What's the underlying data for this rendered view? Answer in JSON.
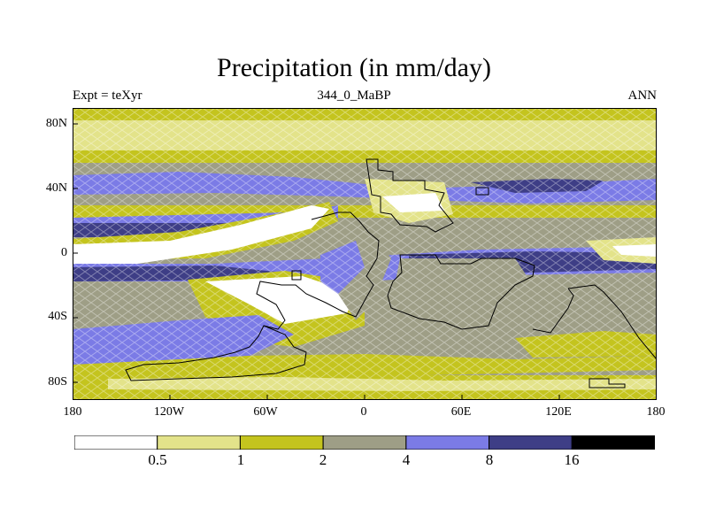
{
  "title": "Precipitation (in mm/day)",
  "subtitle_left": "Expt = teXyr",
  "subtitle_center": "344_0_MaBP",
  "subtitle_right": "ANN",
  "y_ticks": [
    "80N",
    "40N",
    "0",
    "40S",
    "80S"
  ],
  "x_ticks": [
    "180",
    "120W",
    "60W",
    "0",
    "60E",
    "120E",
    "180"
  ],
  "colorbar": {
    "labels": [
      "0.5",
      "1",
      "2",
      "4",
      "8",
      "16"
    ],
    "colors": [
      "#ffffff",
      "#e3e38a",
      "#c4c41e",
      "#9e9e86",
      "#7b7be6",
      "#3e3e86",
      "#000000"
    ]
  },
  "colors": {
    "white": "#ffffff",
    "pale_yellow": "#e3e38a",
    "olive": "#c4c41e",
    "gray": "#9e9e86",
    "blue": "#7b7be6",
    "navy": "#3e3e86",
    "black": "#000000"
  }
}
